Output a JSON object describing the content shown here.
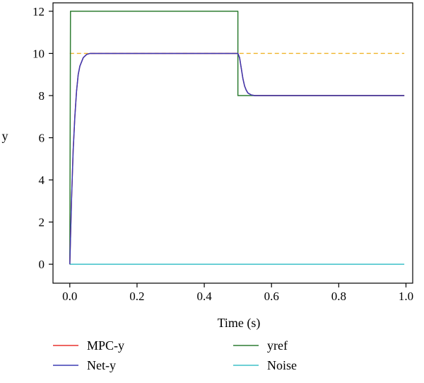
{
  "chart_data": {
    "type": "line",
    "xlabel": "Time (s)",
    "ylabel": "y",
    "xlim": [
      -0.05,
      1.02
    ],
    "ylim": [
      -0.9,
      12.4
    ],
    "xticks": [
      0.0,
      0.2,
      0.4,
      0.6,
      0.8,
      1.0
    ],
    "xtick_labels": [
      "0.0",
      "0.2",
      "0.4",
      "0.6",
      "0.8",
      "1.0"
    ],
    "yticks": [
      0,
      2,
      4,
      6,
      8,
      10,
      12
    ],
    "ytick_labels": [
      "0",
      "2",
      "4",
      "6",
      "8",
      "10",
      "12"
    ],
    "grid": false,
    "legend_position": "bottom",
    "reference_line": {
      "y": 10,
      "color": "#f0b429",
      "style": "dashed"
    },
    "series": [
      {
        "name": "MPC-y",
        "color": "#e8322e",
        "x": [
          0.0,
          0.005,
          0.01,
          0.015,
          0.02,
          0.025,
          0.03,
          0.04,
          0.05,
          0.06,
          0.08,
          0.1,
          0.2,
          0.3,
          0.4,
          0.5,
          0.505,
          0.51,
          0.515,
          0.52,
          0.525,
          0.53,
          0.54,
          0.55,
          0.6,
          0.7,
          0.8,
          0.9,
          0.995
        ],
        "values": [
          0,
          3.0,
          5.4,
          7.0,
          8.2,
          9.0,
          9.4,
          9.8,
          9.95,
          10.0,
          10.0,
          10.0,
          10.0,
          10.0,
          10.0,
          10.0,
          9.8,
          9.3,
          8.8,
          8.45,
          8.25,
          8.12,
          8.03,
          8.0,
          8.0,
          8.0,
          8.0,
          8.0,
          8.0
        ]
      },
      {
        "name": "Net-y",
        "color": "#3b3bb3",
        "x": [
          0.0,
          0.005,
          0.01,
          0.015,
          0.02,
          0.025,
          0.03,
          0.04,
          0.05,
          0.06,
          0.08,
          0.1,
          0.2,
          0.3,
          0.4,
          0.5,
          0.505,
          0.51,
          0.515,
          0.52,
          0.525,
          0.53,
          0.54,
          0.55,
          0.6,
          0.7,
          0.8,
          0.9,
          0.995
        ],
        "values": [
          0,
          3.0,
          5.4,
          7.0,
          8.2,
          9.0,
          9.4,
          9.8,
          9.95,
          10.0,
          10.0,
          10.0,
          10.0,
          10.0,
          10.0,
          10.0,
          9.8,
          9.3,
          8.8,
          8.45,
          8.25,
          8.12,
          8.03,
          8.0,
          8.0,
          8.0,
          8.0,
          8.0,
          8.0
        ]
      },
      {
        "name": "yref",
        "color": "#2e7d32",
        "x": [
          0.0,
          0.002,
          0.5,
          0.5,
          0.995
        ],
        "values": [
          0,
          12,
          12,
          8,
          8
        ]
      },
      {
        "name": "Noise",
        "color": "#3fc1c9",
        "x": [
          0.0,
          0.995
        ],
        "values": [
          0,
          0
        ]
      }
    ]
  }
}
